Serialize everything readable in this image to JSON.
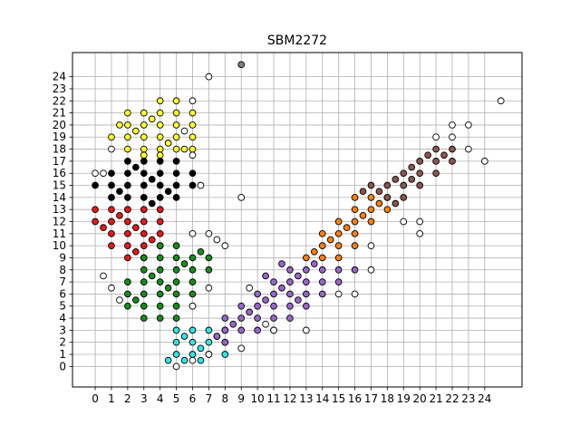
{
  "chart_data": {
    "type": "scatter",
    "title": "SBM2272",
    "xlabel": "",
    "ylabel": "",
    "xlim": [
      -1.4,
      26.3
    ],
    "ylim": [
      -1.7,
      26.0
    ],
    "xticks": [
      "0",
      "1",
      "2",
      "3",
      "4",
      "5",
      "6",
      "7",
      "8",
      "9",
      "10",
      "11",
      "12",
      "13",
      "14",
      "15",
      "16",
      "17",
      "18",
      "19",
      "20",
      "21",
      "22",
      "23",
      "24"
    ],
    "yticks": [
      "0",
      "1",
      "2",
      "3",
      "4",
      "5",
      "6",
      "7",
      "8",
      "9",
      "10",
      "11",
      "12",
      "13",
      "14",
      "15",
      "16",
      "17",
      "18",
      "19",
      "20",
      "21",
      "22",
      "23",
      "24"
    ],
    "grid": true,
    "legend": "none",
    "marker_edge_color": "#000000",
    "series": [
      {
        "color": "#ffff33",
        "points": [
          [
            2,
            21
          ],
          [
            3,
            21
          ],
          [
            4,
            21
          ],
          [
            5,
            21
          ],
          [
            6,
            21
          ],
          [
            2,
            20
          ],
          [
            3,
            20
          ],
          [
            4,
            20
          ],
          [
            5,
            20
          ],
          [
            6,
            20
          ],
          [
            1,
            19
          ],
          [
            2,
            19
          ],
          [
            3,
            19
          ],
          [
            4,
            19
          ],
          [
            5,
            19
          ],
          [
            6,
            19
          ],
          [
            2,
            18
          ],
          [
            3,
            18
          ],
          [
            4,
            18
          ],
          [
            5,
            18
          ],
          [
            6,
            18
          ],
          [
            4,
            22
          ],
          [
            5,
            22
          ],
          [
            1.5,
            20
          ],
          [
            2.5,
            19.5
          ],
          [
            3.5,
            20.5
          ],
          [
            4.5,
            18.5
          ],
          [
            5.5,
            18
          ],
          [
            3,
            17.5
          ],
          [
            4,
            17.5
          ]
        ]
      },
      {
        "color": "#000000",
        "points": [
          [
            2,
            17
          ],
          [
            3,
            17
          ],
          [
            4,
            17
          ],
          [
            5,
            17
          ],
          [
            1,
            16
          ],
          [
            2,
            16
          ],
          [
            3,
            16
          ],
          [
            4,
            16
          ],
          [
            5,
            16
          ],
          [
            6,
            16
          ],
          [
            0,
            15
          ],
          [
            1,
            15
          ],
          [
            2,
            15
          ],
          [
            3,
            15
          ],
          [
            4,
            15
          ],
          [
            5,
            15
          ],
          [
            6,
            15
          ],
          [
            1,
            14
          ],
          [
            2,
            14
          ],
          [
            3,
            14
          ],
          [
            4,
            14
          ],
          [
            5,
            14
          ],
          [
            2,
            13
          ],
          [
            3,
            13
          ],
          [
            4,
            13
          ],
          [
            2.5,
            16.5
          ],
          [
            3.5,
            15.5
          ],
          [
            1.5,
            14.5
          ],
          [
            4.5,
            14.5
          ],
          [
            3.5,
            13.5
          ]
        ]
      },
      {
        "color": "#e41a1c",
        "points": [
          [
            0,
            13
          ],
          [
            1,
            13
          ],
          [
            2,
            13
          ],
          [
            3,
            13
          ],
          [
            4,
            13
          ],
          [
            0,
            12
          ],
          [
            1,
            12
          ],
          [
            2,
            12
          ],
          [
            3,
            12
          ],
          [
            4,
            12
          ],
          [
            1,
            11
          ],
          [
            2,
            11
          ],
          [
            3,
            11
          ],
          [
            4,
            11
          ],
          [
            1,
            10
          ],
          [
            2,
            10
          ],
          [
            3,
            10
          ],
          [
            4,
            10
          ],
          [
            2,
            9
          ],
          [
            3,
            9
          ],
          [
            1.5,
            12.5
          ],
          [
            2.5,
            11.5
          ],
          [
            3.5,
            10.5
          ],
          [
            0.5,
            11.5
          ],
          [
            2.5,
            9.5
          ]
        ]
      },
      {
        "color": "#1a8c1a",
        "points": [
          [
            4,
            10
          ],
          [
            5,
            10
          ],
          [
            3,
            9
          ],
          [
            4,
            9
          ],
          [
            5,
            9
          ],
          [
            6,
            9
          ],
          [
            7,
            9
          ],
          [
            3,
            8
          ],
          [
            4,
            8
          ],
          [
            5,
            8
          ],
          [
            6,
            8
          ],
          [
            7,
            8
          ],
          [
            2,
            7
          ],
          [
            3,
            7
          ],
          [
            4,
            7
          ],
          [
            5,
            7
          ],
          [
            6,
            7
          ],
          [
            2,
            6
          ],
          [
            3,
            6
          ],
          [
            4,
            6
          ],
          [
            5,
            6
          ],
          [
            6,
            6
          ],
          [
            2,
            5
          ],
          [
            3,
            5
          ],
          [
            4,
            5
          ],
          [
            5,
            5
          ],
          [
            6,
            5
          ],
          [
            3,
            4
          ],
          [
            4,
            4
          ],
          [
            5,
            4
          ],
          [
            3.5,
            7.5
          ],
          [
            4.5,
            6.5
          ],
          [
            2.5,
            5.5
          ],
          [
            5.5,
            8.5
          ],
          [
            6.5,
            9.5
          ]
        ]
      },
      {
        "color": "#33e6e6",
        "points": [
          [
            4.5,
            0.5
          ],
          [
            5,
            1
          ],
          [
            6,
            1
          ],
          [
            7,
            1
          ],
          [
            8,
            1
          ],
          [
            5,
            2
          ],
          [
            6,
            2
          ],
          [
            7,
            2
          ],
          [
            8,
            2
          ],
          [
            5,
            3
          ],
          [
            6,
            3
          ],
          [
            7,
            3
          ],
          [
            8,
            3
          ],
          [
            5.5,
            0.5
          ],
          [
            6.5,
            1.5
          ],
          [
            7.5,
            2.5
          ],
          [
            5.5,
            2.5
          ],
          [
            6.5,
            0.5
          ]
        ]
      },
      {
        "color": "#9966cc",
        "points": [
          [
            8,
            2
          ],
          [
            8,
            3
          ],
          [
            9,
            3
          ],
          [
            9,
            4
          ],
          [
            10,
            4
          ],
          [
            8,
            4
          ],
          [
            9,
            5
          ],
          [
            10,
            5
          ],
          [
            11,
            5
          ],
          [
            10,
            6
          ],
          [
            11,
            6
          ],
          [
            12,
            6
          ],
          [
            11,
            7
          ],
          [
            12,
            7
          ],
          [
            13,
            7
          ],
          [
            12,
            8
          ],
          [
            13,
            8
          ],
          [
            14,
            8
          ],
          [
            15,
            8
          ],
          [
            11,
            4
          ],
          [
            12,
            5
          ],
          [
            13,
            6
          ],
          [
            14,
            7
          ],
          [
            15,
            7
          ],
          [
            16,
            8
          ],
          [
            10,
            3
          ],
          [
            11,
            3
          ],
          [
            12,
            4
          ],
          [
            13,
            5
          ],
          [
            14,
            6
          ],
          [
            9.5,
            4.5
          ],
          [
            10.5,
            5.5
          ],
          [
            11.5,
            6.5
          ],
          [
            12.5,
            7.5
          ],
          [
            13.5,
            8.5
          ],
          [
            7.5,
            2.5
          ],
          [
            8.5,
            3.5
          ],
          [
            10.5,
            7.5
          ],
          [
            11.5,
            8.5
          ],
          [
            12.5,
            5.5
          ]
        ]
      },
      {
        "color": "#ff7f0e",
        "points": [
          [
            13,
            9
          ],
          [
            14,
            9
          ],
          [
            15,
            9
          ],
          [
            14,
            10
          ],
          [
            15,
            10
          ],
          [
            16,
            10
          ],
          [
            14,
            11
          ],
          [
            15,
            11
          ],
          [
            16,
            11
          ],
          [
            15,
            12
          ],
          [
            16,
            12
          ],
          [
            17,
            12
          ],
          [
            16,
            13
          ],
          [
            17,
            13
          ],
          [
            18,
            13
          ],
          [
            17,
            14
          ],
          [
            18,
            14
          ],
          [
            13.5,
            9.5
          ],
          [
            14.5,
            10.5
          ],
          [
            15.5,
            11.5
          ],
          [
            16.5,
            12.5
          ],
          [
            17.5,
            13.5
          ],
          [
            16,
            14
          ]
        ]
      },
      {
        "color": "#8c564b",
        "points": [
          [
            18,
            14
          ],
          [
            18,
            15
          ],
          [
            19,
            15
          ],
          [
            19,
            16
          ],
          [
            20,
            16
          ],
          [
            20,
            17
          ],
          [
            21,
            17
          ],
          [
            21,
            18
          ],
          [
            22,
            18
          ],
          [
            22,
            17
          ],
          [
            19,
            14
          ],
          [
            20,
            15
          ],
          [
            21,
            16
          ],
          [
            17,
            15
          ],
          [
            17.5,
            14.5
          ],
          [
            18.5,
            15.5
          ],
          [
            19.5,
            16.5
          ],
          [
            20.5,
            17.5
          ],
          [
            21.5,
            17.5
          ],
          [
            18.5,
            13.5
          ],
          [
            16.5,
            14.5
          ],
          [
            19.5,
            15.5
          ]
        ]
      },
      {
        "color": "#ffffff",
        "points": [
          [
            7,
            24
          ],
          [
            9,
            14
          ],
          [
            6,
            22
          ],
          [
            25,
            22
          ],
          [
            23,
            20
          ],
          [
            22,
            19
          ],
          [
            21,
            19
          ],
          [
            22,
            20
          ],
          [
            23,
            18
          ],
          [
            24,
            17
          ],
          [
            20,
            12
          ],
          [
            19,
            12
          ],
          [
            17,
            10
          ],
          [
            17,
            8
          ],
          [
            15,
            6
          ],
          [
            16,
            6
          ],
          [
            13,
            3
          ],
          [
            9,
            1.5
          ],
          [
            9.5,
            6.5
          ],
          [
            7.5,
            10.5
          ],
          [
            8,
            10
          ],
          [
            7,
            11
          ],
          [
            6,
            11
          ],
          [
            5.5,
            19.5
          ],
          [
            6,
            17.5
          ],
          [
            6.5,
            15
          ],
          [
            0.5,
            16
          ],
          [
            0,
            16
          ],
          [
            0.5,
            7.5
          ],
          [
            1,
            6.5
          ],
          [
            1.5,
            5.5
          ],
          [
            6,
            5
          ],
          [
            7,
            6.5
          ],
          [
            1,
            18
          ],
          [
            7,
            1
          ],
          [
            6,
            0.5
          ],
          [
            5,
            0
          ],
          [
            10.5,
            3.5
          ],
          [
            11,
            3
          ],
          [
            20,
            11
          ]
        ]
      },
      {
        "color": "#808080",
        "points": [
          [
            9,
            25
          ]
        ]
      }
    ]
  }
}
